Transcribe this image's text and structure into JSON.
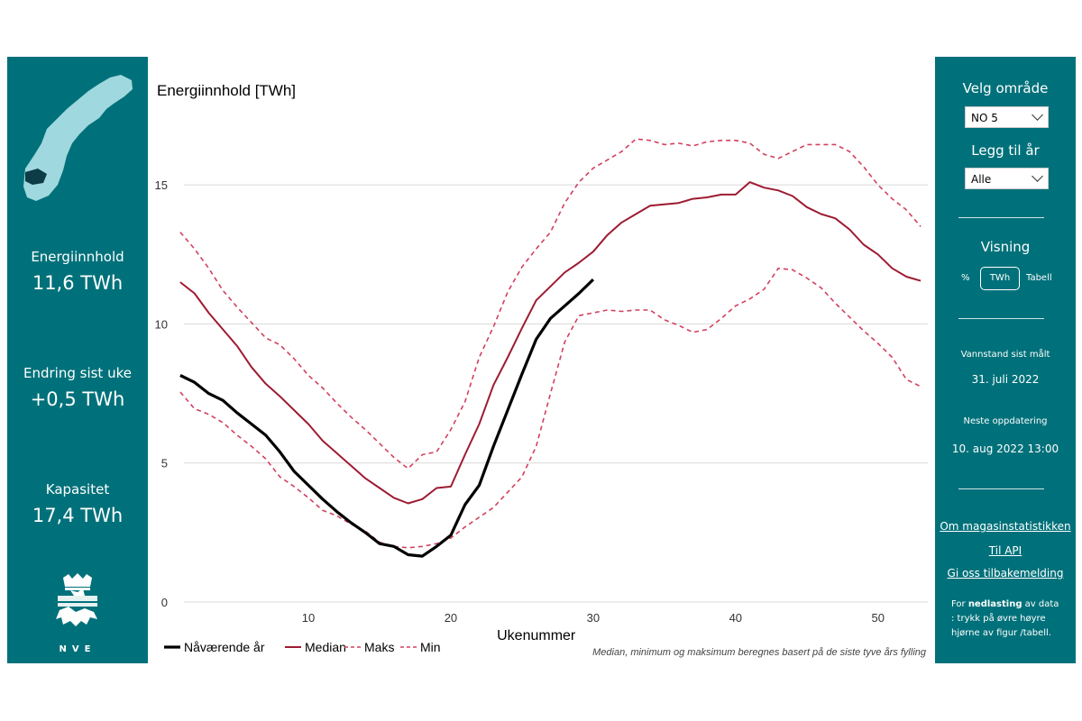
{
  "left_panel": {
    "stats": [
      {
        "label": "Energiinnhold",
        "value": "11,6 TWh"
      },
      {
        "label": "Endring sist uke",
        "value": "+0,5 TWh"
      },
      {
        "label": "Kapasitet",
        "value": "17,4 TWh"
      }
    ],
    "logo_text": "NVE"
  },
  "right_panel": {
    "area_title": "Velg område",
    "area_value": "NO 5",
    "year_title": "Legg til år",
    "year_value": "Alle",
    "view_title": "Visning",
    "view_options": [
      "%",
      "TWh",
      "Tabell"
    ],
    "view_selected": "TWh",
    "measured_label": "Vannstand sist målt",
    "measured_value": "31. juli 2022",
    "next_label": "Neste oppdatering",
    "next_value": "10. aug 2022 13:00",
    "links": [
      "Om magasinstatistikken",
      "Til API",
      "Gi oss tilbakemelding"
    ],
    "download_note_prefix": "For ",
    "download_note_bold": "nedlasting",
    "download_note_suffix": " av data : trykk på øvre høyre hjørne av figur /tabell."
  },
  "colors": {
    "panel": "#00717a",
    "current": "#000000",
    "median": "#9e1b32",
    "band": "#d2405e",
    "grid": "#d9d9d9"
  },
  "chart_data": {
    "type": "line",
    "title": "Energiinnhold [TWh]",
    "xlabel": "Ukenummer",
    "ylabel": "",
    "xlim": [
      0.5,
      53.5
    ],
    "ylim": [
      0,
      17.5
    ],
    "xticks": [
      10,
      20,
      30,
      40,
      50
    ],
    "yticks": [
      0,
      5,
      10,
      15
    ],
    "grid": "horizontal",
    "legend_position": "bottom-left",
    "footnote": "Median, minimum og maksimum beregnes basert på de siste tyve års fylling",
    "series": [
      {
        "name": "Nåværende år",
        "style": "solid-bold",
        "x": [
          1,
          2,
          3,
          4,
          5,
          6,
          7,
          8,
          9,
          10,
          11,
          12,
          13,
          14,
          15,
          16,
          17,
          18,
          19,
          20,
          21,
          22,
          23,
          24,
          25,
          26,
          27,
          28,
          29,
          30
        ],
        "values": [
          8.15,
          7.9,
          7.5,
          7.25,
          6.8,
          6.4,
          6.0,
          5.4,
          4.7,
          4.2,
          3.7,
          3.25,
          2.85,
          2.5,
          2.1,
          2.0,
          1.7,
          1.65,
          2.0,
          2.4,
          3.5,
          4.2,
          5.6,
          6.9,
          8.2,
          9.45,
          10.2,
          10.65,
          11.1,
          11.6
        ]
      },
      {
        "name": "Median",
        "style": "solid",
        "x": [
          1,
          2,
          3,
          4,
          5,
          6,
          7,
          8,
          9,
          10,
          11,
          12,
          13,
          14,
          15,
          16,
          17,
          18,
          19,
          20,
          21,
          22,
          23,
          24,
          25,
          26,
          27,
          28,
          29,
          30,
          31,
          32,
          33,
          34,
          35,
          36,
          37,
          38,
          39,
          40,
          41,
          42,
          43,
          44,
          45,
          46,
          47,
          48,
          49,
          50,
          51,
          52,
          53
        ],
        "values": [
          11.5,
          11.1,
          10.4,
          9.8,
          9.2,
          8.45,
          7.85,
          7.4,
          6.9,
          6.4,
          5.8,
          5.35,
          4.9,
          4.45,
          4.1,
          3.75,
          3.55,
          3.7,
          4.1,
          4.15,
          5.3,
          6.4,
          7.8,
          8.8,
          9.85,
          10.85,
          11.35,
          11.85,
          12.2,
          12.6,
          13.2,
          13.65,
          13.95,
          14.25,
          14.3,
          14.35,
          14.5,
          14.55,
          14.65,
          14.65,
          15.1,
          14.9,
          14.8,
          14.6,
          14.2,
          13.95,
          13.8,
          13.4,
          12.85,
          12.5,
          12.0,
          11.7,
          11.55
        ]
      },
      {
        "name": "Maks",
        "style": "dashed",
        "x": [
          1,
          2,
          3,
          4,
          5,
          6,
          7,
          8,
          9,
          10,
          11,
          12,
          13,
          14,
          15,
          16,
          17,
          18,
          19,
          20,
          21,
          22,
          23,
          24,
          25,
          26,
          27,
          28,
          29,
          30,
          31,
          32,
          33,
          34,
          35,
          36,
          37,
          38,
          39,
          40,
          41,
          42,
          43,
          44,
          45,
          46,
          47,
          48,
          49,
          50,
          51,
          52,
          53
        ],
        "values": [
          13.3,
          12.7,
          12.0,
          11.2,
          10.6,
          10.05,
          9.5,
          9.25,
          8.75,
          8.15,
          7.7,
          7.15,
          6.65,
          6.2,
          5.7,
          5.2,
          4.8,
          5.3,
          5.4,
          6.2,
          7.2,
          8.8,
          9.9,
          11.15,
          12.05,
          12.7,
          13.3,
          14.35,
          15.1,
          15.6,
          15.9,
          16.2,
          16.65,
          16.6,
          16.45,
          16.5,
          16.4,
          16.55,
          16.6,
          16.6,
          16.5,
          16.1,
          15.95,
          16.2,
          16.45,
          16.45,
          16.45,
          16.2,
          15.65,
          15.0,
          14.5,
          14.1,
          13.5
        ]
      },
      {
        "name": "Min",
        "style": "dashed",
        "x": [
          1,
          2,
          3,
          4,
          5,
          6,
          7,
          8,
          9,
          10,
          11,
          12,
          13,
          14,
          15,
          16,
          17,
          18,
          19,
          20,
          21,
          22,
          23,
          24,
          25,
          26,
          27,
          28,
          29,
          30,
          31,
          32,
          33,
          34,
          35,
          36,
          37,
          38,
          39,
          40,
          41,
          42,
          43,
          44,
          45,
          46,
          47,
          48,
          49,
          50,
          51,
          52,
          53
        ],
        "values": [
          7.55,
          6.95,
          6.75,
          6.45,
          6.0,
          5.6,
          5.15,
          4.5,
          4.15,
          3.75,
          3.3,
          3.1,
          2.8,
          2.55,
          2.15,
          2.0,
          1.95,
          2.0,
          2.1,
          2.3,
          2.7,
          3.05,
          3.4,
          3.95,
          4.5,
          5.6,
          7.5,
          9.35,
          10.3,
          10.4,
          10.5,
          10.45,
          10.5,
          10.5,
          10.15,
          9.95,
          9.7,
          9.8,
          10.2,
          10.65,
          10.9,
          11.25,
          12.0,
          11.95,
          11.65,
          11.3,
          10.75,
          10.25,
          9.75,
          9.3,
          8.8,
          8.0,
          7.75
        ]
      }
    ]
  }
}
